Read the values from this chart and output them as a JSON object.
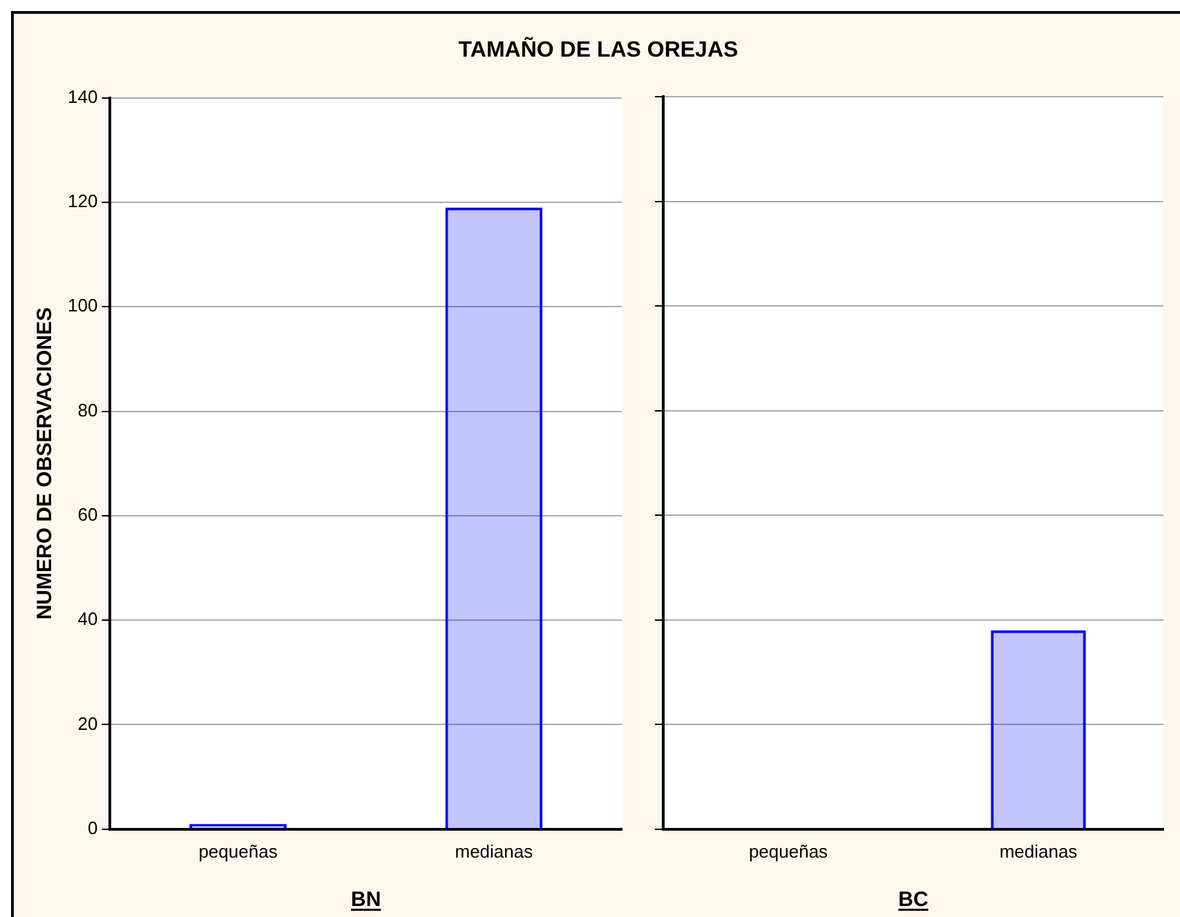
{
  "chart_data": [
    {
      "type": "bar",
      "title": "TAMAÑO DE LAS OREJAS",
      "xlabel": "BN",
      "ylabel": "NUMERO DE OBSERVACIONES",
      "categories": [
        "pequeñas",
        "medianas"
      ],
      "values": [
        1,
        119
      ],
      "color": "#0000ff",
      "ylim": [
        0,
        140
      ],
      "yticks": [
        0,
        20,
        40,
        60,
        80,
        100,
        120,
        140
      ],
      "grid": "y"
    },
    {
      "type": "bar",
      "xlabel": "BC",
      "categories": [
        "pequeñas",
        "medianas"
      ],
      "values": [
        0,
        38
      ],
      "color": "#0000ff",
      "ylim": [
        0,
        140
      ],
      "yticks": [
        0,
        20,
        40,
        60,
        80,
        100,
        120,
        140
      ],
      "grid": "y",
      "tick_labels": "x"
    }
  ]
}
